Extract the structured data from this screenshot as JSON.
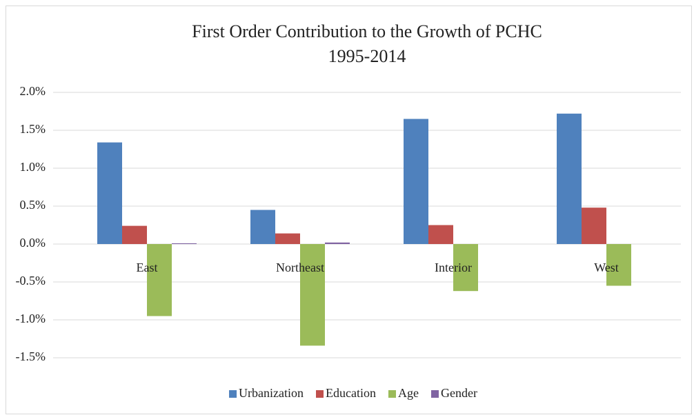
{
  "chart_data": {
    "type": "bar",
    "title": "First Order Contribution to the Growth of PCHC",
    "subtitle": "1995-2014",
    "categories": [
      "East",
      "Northeast",
      "Interior",
      "West"
    ],
    "series": [
      {
        "name": "Urbanization",
        "color": "#4f81bd",
        "values": [
          1.34,
          0.45,
          1.65,
          1.72
        ]
      },
      {
        "name": "Education",
        "color": "#c0504d",
        "values": [
          0.24,
          0.14,
          0.25,
          0.48
        ]
      },
      {
        "name": "Age",
        "color": "#9bbb59",
        "values": [
          -0.95,
          -1.34,
          -0.62,
          -0.55
        ]
      },
      {
        "name": "Gender",
        "color": "#8064a2",
        "values": [
          0.01,
          0.02,
          0,
          0
        ]
      }
    ],
    "ylim": [
      -1.5,
      2.0
    ],
    "yticks": [
      {
        "value": -1.5,
        "label": "-1.5%"
      },
      {
        "value": -1.0,
        "label": "-1.0%"
      },
      {
        "value": -0.5,
        "label": "-0.5%"
      },
      {
        "value": 0.0,
        "label": "0.0%"
      },
      {
        "value": 0.5,
        "label": "0.5%"
      },
      {
        "value": 1.0,
        "label": "1.0%"
      },
      {
        "value": 1.5,
        "label": "1.5%"
      },
      {
        "value": 2.0,
        "label": "2.0%"
      }
    ],
    "grid": true,
    "legend": "bottom"
  }
}
